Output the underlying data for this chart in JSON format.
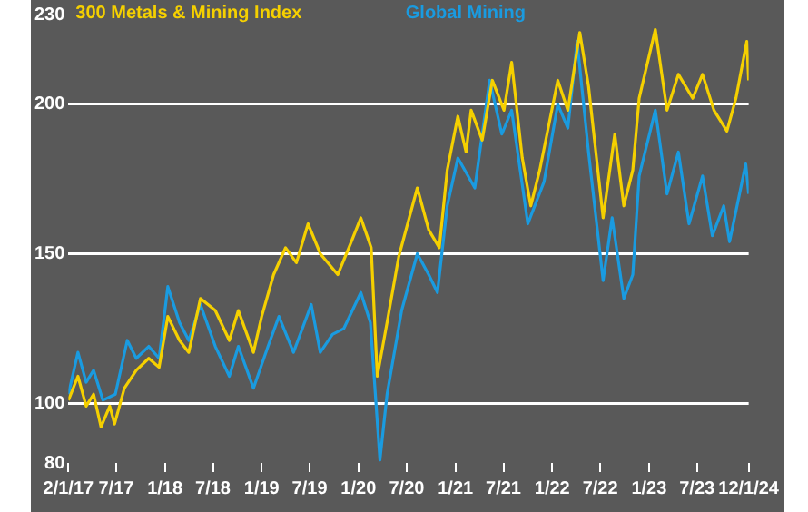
{
  "chart_data": {
    "type": "line",
    "legend": "top left",
    "grid": "y",
    "xlim": [
      "2017-01-02",
      "2024-01-12"
    ],
    "xticks": [
      {
        "value": "2017-01-02",
        "label": "2/1/17"
      },
      {
        "value": "2017-07-01",
        "label": "7/17"
      },
      {
        "value": "2018-01-01",
        "label": "1/18"
      },
      {
        "value": "2018-07-01",
        "label": "7/18"
      },
      {
        "value": "2019-01-01",
        "label": "1/19"
      },
      {
        "value": "2019-07-01",
        "label": "7/19"
      },
      {
        "value": "2020-01-01",
        "label": "1/20"
      },
      {
        "value": "2020-07-01",
        "label": "7/20"
      },
      {
        "value": "2021-01-01",
        "label": "1/21"
      },
      {
        "value": "2021-07-01",
        "label": "7/21"
      },
      {
        "value": "2022-01-01",
        "label": "1/22"
      },
      {
        "value": "2022-07-01",
        "label": "7/22"
      },
      {
        "value": "2023-01-01",
        "label": "1/23"
      },
      {
        "value": "2023-07-01",
        "label": "7/23"
      },
      {
        "value": "2024-01-12",
        "label": "12/1/24"
      }
    ],
    "ylim": [
      80,
      230
    ],
    "yticks": [
      80,
      100,
      150,
      200,
      230
    ],
    "series": [
      {
        "name": "300 Metals & Mining Index",
        "color": "#f5d000",
        "x": [
          "2017-01-02",
          "2017-02-07",
          "2017-03-10",
          "2017-04-07",
          "2017-05-05",
          "2017-06-07",
          "2017-06-25",
          "2017-08-01",
          "2017-09-15",
          "2017-11-01",
          "2017-12-10",
          "2018-01-12",
          "2018-02-25",
          "2018-04-01",
          "2018-05-15",
          "2018-07-10",
          "2018-09-01",
          "2018-10-05",
          "2018-12-01",
          "2019-01-01",
          "2019-02-15",
          "2019-04-01",
          "2019-05-12",
          "2019-06-25",
          "2019-08-10",
          "2019-10-15",
          "2019-12-05",
          "2020-01-10",
          "2020-02-18",
          "2020-03-12",
          "2020-04-18",
          "2020-06-01",
          "2020-08-10",
          "2020-09-22",
          "2020-11-01",
          "2020-12-01",
          "2021-01-10",
          "2021-02-10",
          "2021-03-01",
          "2021-04-12",
          "2021-05-20",
          "2021-07-03",
          "2021-08-01",
          "2021-09-10",
          "2021-10-12",
          "2021-11-15",
          "2022-01-22",
          "2022-03-01",
          "2022-04-15",
          "2022-05-18",
          "2022-07-12",
          "2022-08-25",
          "2022-09-28",
          "2022-11-01",
          "2022-11-25",
          "2023-01-25",
          "2023-03-10",
          "2023-04-22",
          "2023-06-15",
          "2023-07-22",
          "2023-09-03",
          "2023-10-22",
          "2023-11-25",
          "2024-01-05",
          "2024-01-12"
        ],
        "values": [
          101,
          109,
          99,
          103,
          92,
          99,
          93,
          105,
          111,
          115,
          112,
          129,
          121,
          117,
          135,
          131,
          121,
          131,
          117,
          129,
          143,
          152,
          147,
          160,
          150,
          143,
          154,
          162,
          152,
          109,
          127,
          149,
          172,
          158,
          152,
          178,
          196,
          184,
          198,
          188,
          208,
          198,
          214,
          182,
          166,
          178,
          208,
          198,
          224,
          206,
          162,
          190,
          166,
          178,
          202,
          225,
          198,
          210,
          202,
          210,
          198,
          191,
          202,
          221,
          208
        ]
      },
      {
        "name": "Global Mining",
        "color": "#1a9be0",
        "x": [
          "2017-01-02",
          "2017-02-07",
          "2017-03-10",
          "2017-04-07",
          "2017-05-12",
          "2017-06-28",
          "2017-08-12",
          "2017-09-15",
          "2017-11-01",
          "2017-12-10",
          "2018-01-12",
          "2018-02-25",
          "2018-04-01",
          "2018-05-15",
          "2018-07-10",
          "2018-09-01",
          "2018-10-05",
          "2018-12-01",
          "2019-01-25",
          "2019-03-07",
          "2019-05-01",
          "2019-07-07",
          "2019-08-10",
          "2019-09-25",
          "2019-11-07",
          "2020-01-10",
          "2020-02-15",
          "2020-03-22",
          "2020-04-18",
          "2020-06-12",
          "2020-08-10",
          "2020-09-22",
          "2020-10-25",
          "2020-12-01",
          "2021-01-10",
          "2021-03-15",
          "2021-05-10",
          "2021-06-25",
          "2021-08-01",
          "2021-10-01",
          "2021-12-01",
          "2022-01-22",
          "2022-03-01",
          "2022-04-05",
          "2022-05-18",
          "2022-07-12",
          "2022-08-15",
          "2022-09-28",
          "2022-11-01",
          "2022-11-25",
          "2023-01-25",
          "2023-03-10",
          "2023-04-22",
          "2023-06-01",
          "2023-07-22",
          "2023-08-28",
          "2023-10-10",
          "2023-11-01",
          "2024-01-01",
          "2024-01-12"
        ],
        "values": [
          103,
          117,
          107,
          111,
          101,
          103,
          121,
          115,
          119,
          115,
          139,
          127,
          121,
          133,
          119,
          109,
          119,
          105,
          119,
          129,
          117,
          133,
          117,
          123,
          125,
          137,
          127,
          81,
          103,
          131,
          150,
          143,
          137,
          166,
          182,
          172,
          208,
          190,
          198,
          160,
          174,
          200,
          192,
          221,
          184,
          141,
          162,
          135,
          143,
          176,
          198,
          170,
          184,
          160,
          176,
          156,
          166,
          154,
          180,
          170
        ]
      }
    ]
  }
}
